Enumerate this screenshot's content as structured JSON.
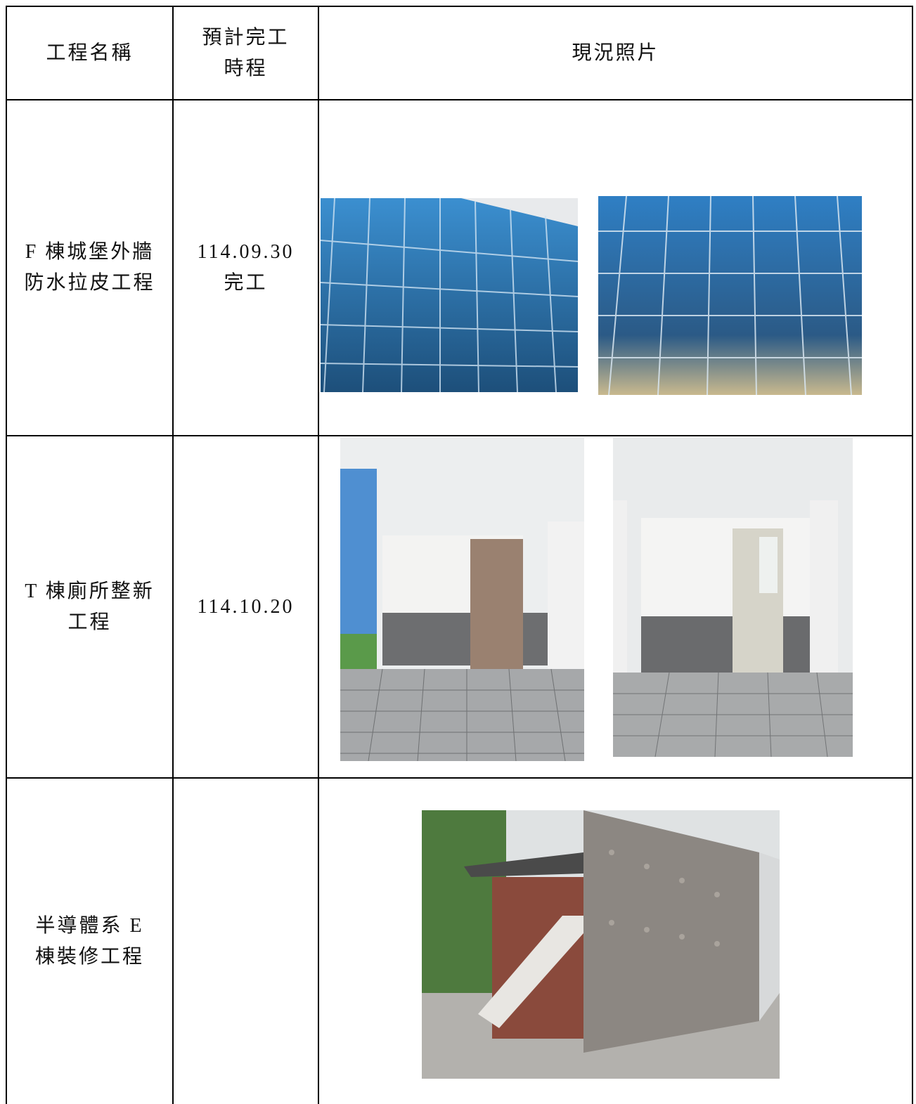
{
  "table": {
    "header": {
      "name": [
        "工程名稱"
      ],
      "schedule": [
        "預計完工",
        "時程"
      ],
      "photos": "現況照片"
    },
    "rows": [
      {
        "name": [
          "F 棟城堡外牆",
          "防水拉皮工程"
        ],
        "schedule": [
          "114.09.30",
          "完工"
        ]
      },
      {
        "name": [
          "T 棟廁所整新",
          "工程"
        ],
        "schedule": [
          "114.10.20"
        ]
      },
      {
        "name": [
          "半導體系 E",
          "棟裝修工程"
        ]
      }
    ]
  }
}
